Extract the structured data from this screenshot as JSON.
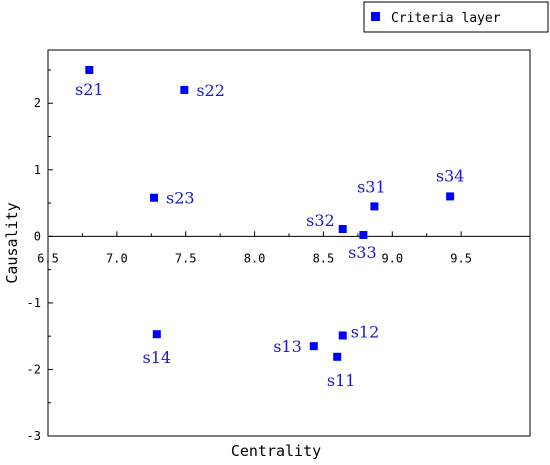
{
  "chart_data": {
    "type": "scatter",
    "title": "",
    "xlabel": "Centrality",
    "ylabel": "Causality",
    "xlim": [
      6.5,
      10.0
    ],
    "ylim": [
      -3,
      2.8
    ],
    "x_ticks": [
      6.5,
      7.0,
      7.5,
      8.0,
      8.5,
      9.0,
      9.5
    ],
    "x_tick_labels": [
      "6.5",
      "7.0",
      "7.5",
      "8.0",
      "8.5",
      "9.0",
      "9.5"
    ],
    "y_ticks": [
      -3,
      -2,
      -1,
      0,
      1,
      2
    ],
    "y_tick_labels": [
      "-3",
      "-2",
      "-1",
      "0",
      "1",
      "2"
    ],
    "x_axis_crosses_at_y": 0,
    "grid": false,
    "legend": {
      "position": "top-right",
      "entries": [
        "Criteria layer"
      ]
    },
    "marker_color": "#0000ff",
    "label_color": "#1a1acd",
    "series": [
      {
        "name": "Criteria layer",
        "points": [
          {
            "label": "s21",
            "x": 6.8,
            "y": 2.5
          },
          {
            "label": "s22",
            "x": 7.49,
            "y": 2.2
          },
          {
            "label": "s23",
            "x": 7.27,
            "y": 0.58
          },
          {
            "label": "s14",
            "x": 7.29,
            "y": -1.47
          },
          {
            "label": "s13",
            "x": 8.43,
            "y": -1.65
          },
          {
            "label": "s12",
            "x": 8.64,
            "y": -1.49
          },
          {
            "label": "s11",
            "x": 8.6,
            "y": -1.81
          },
          {
            "label": "s32",
            "x": 8.64,
            "y": 0.11
          },
          {
            "label": "s33",
            "x": 8.79,
            "y": 0.02
          },
          {
            "label": "s31",
            "x": 8.87,
            "y": 0.45
          },
          {
            "label": "s34",
            "x": 9.42,
            "y": 0.6
          }
        ]
      }
    ]
  }
}
